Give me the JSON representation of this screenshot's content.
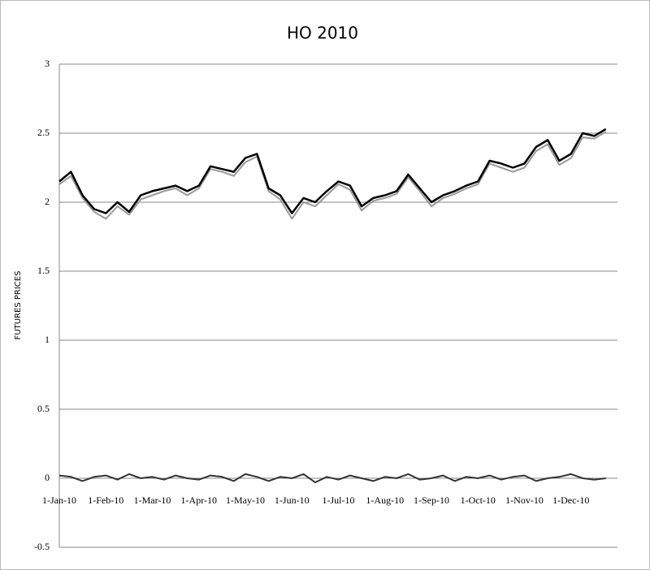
{
  "chart_data": {
    "type": "line",
    "title": "HO 2010",
    "y_label": "FUTURES PRICES",
    "categories": [
      "1-Jan-10",
      null,
      null,
      null,
      "1-Feb-10",
      null,
      null,
      null,
      "1-Mar-10",
      null,
      null,
      null,
      "1-Apr-10",
      null,
      null,
      null,
      "1-May-10",
      null,
      null,
      null,
      "1-Jun-10",
      null,
      null,
      null,
      "1-Jul-10",
      null,
      null,
      null,
      "1-Aug-10",
      null,
      null,
      null,
      "1-Sep-10",
      null,
      null,
      null,
      "1-Oct-10",
      null,
      null,
      null,
      "1-Nov-10",
      null,
      null,
      null,
      "1-Dec-10",
      null,
      null,
      null
    ],
    "series": [
      {
        "color": "#999999",
        "values": [
          2.13,
          2.19,
          2.03,
          1.93,
          1.88,
          1.97,
          1.91,
          2.02,
          2.05,
          2.08,
          2.1,
          2.05,
          2.1,
          2.24,
          2.22,
          2.19,
          2.29,
          2.33,
          2.08,
          2.02,
          1.88,
          2.0,
          1.97,
          2.05,
          2.13,
          2.09,
          1.94,
          2.01,
          2.03,
          2.06,
          2.18,
          2.08,
          1.97,
          2.03,
          2.06,
          2.1,
          2.13,
          2.28,
          2.25,
          2.22,
          2.25,
          2.37,
          2.42,
          2.27,
          2.32,
          2.47,
          2.46,
          2.51
        ]
      },
      {
        "color": "#000000",
        "values": [
          2.15,
          2.22,
          2.05,
          1.95,
          1.92,
          2.0,
          1.93,
          2.05,
          2.08,
          2.1,
          2.12,
          2.08,
          2.12,
          2.26,
          2.24,
          2.22,
          2.32,
          2.35,
          2.1,
          2.05,
          1.92,
          2.03,
          2.0,
          2.08,
          2.15,
          2.12,
          1.97,
          2.03,
          2.05,
          2.08,
          2.2,
          2.1,
          2.0,
          2.05,
          2.08,
          2.12,
          2.15,
          2.3,
          2.28,
          2.25,
          2.28,
          2.4,
          2.45,
          2.3,
          2.35,
          2.5,
          2.48,
          2.53
        ]
      },
      {
        "color": "#333333",
        "values": [
          0.02,
          0.01,
          -0.02,
          0.01,
          0.02,
          -0.01,
          0.03,
          0.0,
          0.01,
          -0.01,
          0.02,
          0.0,
          -0.01,
          0.02,
          0.01,
          -0.02,
          0.03,
          0.01,
          -0.02,
          0.01,
          0.0,
          0.03,
          -0.03,
          0.01,
          -0.01,
          0.02,
          0.0,
          -0.02,
          0.01,
          0.0,
          0.03,
          -0.01,
          0.0,
          0.02,
          -0.02,
          0.01,
          0.0,
          0.02,
          -0.01,
          0.01,
          0.02,
          -0.02,
          0.0,
          0.01,
          0.03,
          0.0,
          -0.01,
          0.0
        ]
      }
    ],
    "ylim": [
      -0.5,
      3
    ],
    "yticks": [
      -0.5,
      0,
      0.5,
      1,
      1.5,
      2,
      2.5,
      3
    ],
    "grid": true
  }
}
